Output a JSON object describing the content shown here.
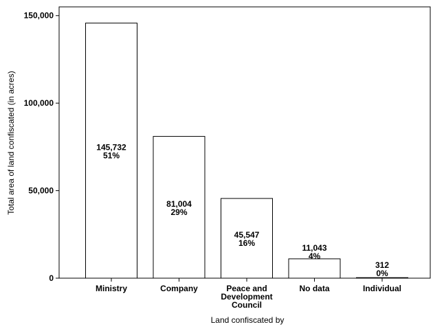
{
  "chart_data": {
    "type": "bar",
    "categories": [
      [
        "Ministry"
      ],
      [
        "Company"
      ],
      [
        "Peace and",
        "Development",
        "Council"
      ],
      [
        "No data"
      ],
      [
        "Individual"
      ]
    ],
    "values": [
      145732,
      81004,
      45547,
      11043,
      312
    ],
    "data_labels": [
      [
        "145,732",
        "51%"
      ],
      [
        "81,004",
        "29%"
      ],
      [
        "45,547",
        "16%"
      ],
      [
        "11,043",
        "4%"
      ],
      [
        "312",
        "0%"
      ]
    ],
    "xlabel": "Land confiscated by",
    "ylabel": "Total area of land confiscated (in acres)",
    "ylim": [
      0,
      155000
    ],
    "yticks": [
      0,
      50000,
      100000,
      150000
    ],
    "ytick_labels": [
      "0",
      "50,000",
      "100,000",
      "150,000"
    ],
    "grid": false,
    "bar_fill": "#ffffff",
    "bar_stroke": "#000000"
  }
}
